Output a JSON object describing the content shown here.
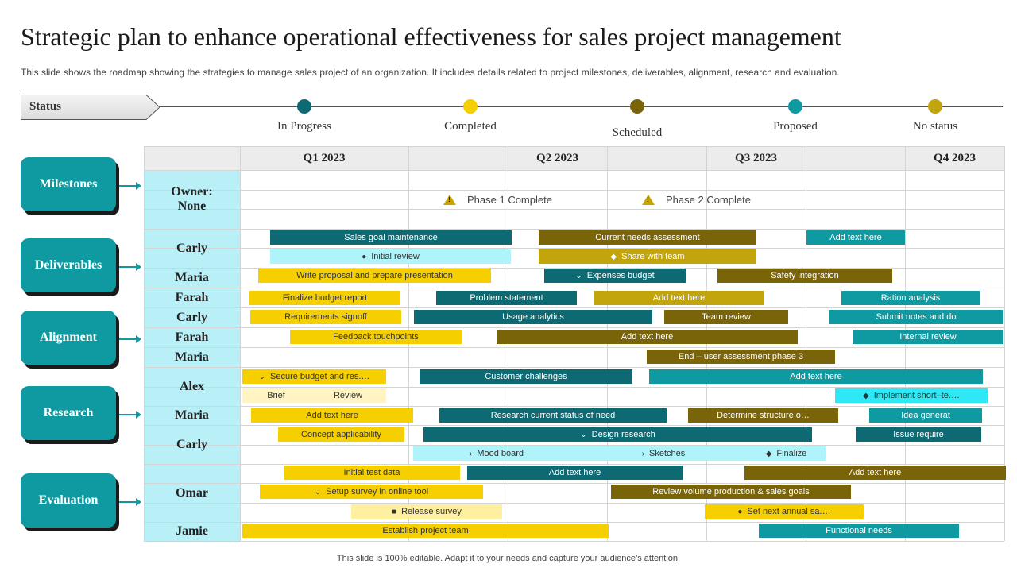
{
  "title": "Strategic plan to enhance operational effectiveness  for sales project management",
  "subtitle": "This slide shows the roadmap showing the strategies to manage sales project of an organization. It includes details related to project milestones, deliverables, alignment, research and evaluation.",
  "status_label": "Status",
  "legend": [
    {
      "label": "In Progress",
      "color": "#0d6a73"
    },
    {
      "label": "Completed",
      "color": "#f5cf00"
    },
    {
      "label": "Scheduled",
      "color": "#7a6409"
    },
    {
      "label": "Proposed",
      "color": "#0e9aa0"
    },
    {
      "label": "No status",
      "color": "#c2a40c"
    }
  ],
  "quarters": [
    "Q1 2023",
    "Q2 2023",
    "Q3 2023",
    "Q4 2023"
  ],
  "categories": [
    "Milestones",
    "Deliverables",
    "Alignment",
    "Research",
    "Evaluation"
  ],
  "owners": [
    "Owner:\nNone",
    "Carly",
    "Maria",
    "Farah",
    "Carly",
    "Farah",
    "Maria",
    "Alex",
    "Maria",
    "Carly",
    "Omar",
    "Jamie"
  ],
  "milestones": [
    "Phase 1 Complete",
    "Phase 2 Complete"
  ],
  "tasks": [
    {
      "label": "Sales goal maintenance",
      "icon": ""
    },
    {
      "label": "Current needs assessment",
      "icon": ""
    },
    {
      "label": "Add text here",
      "icon": ""
    },
    {
      "label": "Initial  review",
      "icon": "●"
    },
    {
      "label": "Share with team",
      "icon": "◆"
    },
    {
      "label": "Write proposal and prepare presentation",
      "icon": ""
    },
    {
      "label": "Expenses budget",
      "icon": "⌄"
    },
    {
      "label": "Safety integration",
      "icon": ""
    },
    {
      "label": "Finalize budget report",
      "icon": ""
    },
    {
      "label": "Problem  statement",
      "icon": ""
    },
    {
      "label": "Add text here",
      "icon": ""
    },
    {
      "label": "Ration analysis",
      "icon": ""
    },
    {
      "label": "Requirements signoff",
      "icon": ""
    },
    {
      "label": "Usage analytics",
      "icon": ""
    },
    {
      "label": "Team review",
      "icon": ""
    },
    {
      "label": "Submit notes and do",
      "icon": ""
    },
    {
      "label": "Feedback touchpoints",
      "icon": ""
    },
    {
      "label": "Add text here",
      "icon": ""
    },
    {
      "label": "Internal review",
      "icon": ""
    },
    {
      "label": "End – user assessment phase 3",
      "icon": ""
    },
    {
      "label": "Secure budget and res.…",
      "icon": "⌄"
    },
    {
      "label": "Customer challenges",
      "icon": ""
    },
    {
      "label": "Add text here",
      "icon": ""
    },
    {
      "label": "Brief",
      "icon": ""
    },
    {
      "label": "Review",
      "icon": ""
    },
    {
      "label": "Implement  short–te.…",
      "icon": "◆"
    },
    {
      "label": "Add text here",
      "icon": ""
    },
    {
      "label": "Research current status of need",
      "icon": ""
    },
    {
      "label": "Determine structure o…",
      "icon": ""
    },
    {
      "label": "Idea generat",
      "icon": ""
    },
    {
      "label": "Concept applicability",
      "icon": ""
    },
    {
      "label": "Design research",
      "icon": "⌄"
    },
    {
      "label": "Issue require",
      "icon": ""
    },
    {
      "label": "Mood board",
      "icon": "›"
    },
    {
      "label": "Sketches",
      "icon": "›"
    },
    {
      "label": "Finalize",
      "icon": "◆"
    },
    {
      "label": "Initial  test data",
      "icon": ""
    },
    {
      "label": "Add text here",
      "icon": ""
    },
    {
      "label": "Add text here",
      "icon": ""
    },
    {
      "label": "Setup survey in online tool",
      "icon": "⌄"
    },
    {
      "label": "Review volume production & sales goals",
      "icon": ""
    },
    {
      "label": "Release survey",
      "icon": "■"
    },
    {
      "label": "Set next annual sa.…",
      "icon": "●"
    },
    {
      "label": "Establish project team",
      "icon": ""
    },
    {
      "label": "Functional needs",
      "icon": ""
    }
  ],
  "footer": "This slide is 100% editable.  Adapt it to your needs and capture your audience’s attention."
}
